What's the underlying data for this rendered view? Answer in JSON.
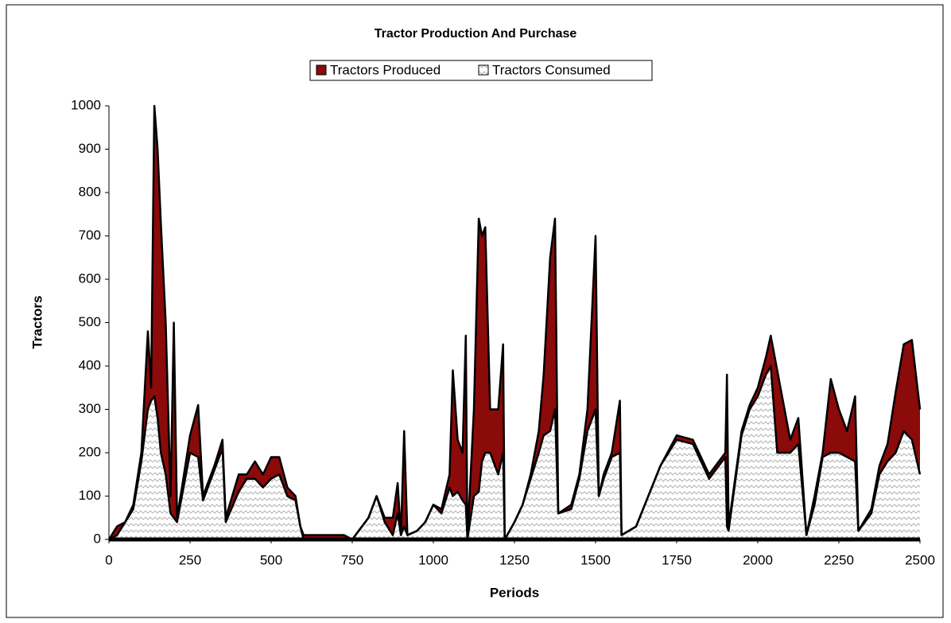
{
  "chart_data": {
    "type": "area",
    "title": "Tractor Production And Purchase",
    "x_label": "Periods",
    "y_label": "Tractors",
    "x": [
      0,
      25,
      50,
      75,
      100,
      120,
      130,
      140,
      150,
      160,
      175,
      190,
      200,
      210,
      225,
      250,
      275,
      290,
      325,
      350,
      360,
      400,
      425,
      450,
      475,
      500,
      525,
      550,
      575,
      590,
      600,
      650,
      700,
      725,
      750,
      800,
      825,
      850,
      875,
      890,
      900,
      910,
      920,
      950,
      975,
      1000,
      1025,
      1050,
      1060,
      1075,
      1090,
      1100,
      1105,
      1125,
      1140,
      1150,
      1160,
      1175,
      1200,
      1215,
      1220,
      1250,
      1275,
      1300,
      1325,
      1340,
      1360,
      1375,
      1385,
      1425,
      1450,
      1475,
      1500,
      1510,
      1525,
      1550,
      1575,
      1580,
      1625,
      1700,
      1750,
      1800,
      1850,
      1900,
      1905,
      1910,
      1950,
      1975,
      2000,
      2025,
      2040,
      2060,
      2100,
      2125,
      2150,
      2175,
      2200,
      2225,
      2250,
      2275,
      2300,
      2310,
      2350,
      2375,
      2400,
      2425,
      2450,
      2475,
      2500
    ],
    "series": [
      {
        "name": "Tractors Produced",
        "color": "#8b0a0a",
        "values": [
          0,
          30,
          40,
          80,
          200,
          480,
          350,
          1000,
          900,
          730,
          500,
          100,
          500,
          50,
          120,
          240,
          310,
          100,
          170,
          230,
          50,
          150,
          150,
          180,
          150,
          190,
          190,
          120,
          100,
          30,
          10,
          10,
          10,
          10,
          0,
          50,
          100,
          50,
          50,
          130,
          10,
          250,
          10,
          20,
          40,
          80,
          70,
          150,
          390,
          230,
          200,
          470,
          0,
          300,
          740,
          700,
          720,
          300,
          300,
          450,
          0,
          40,
          80,
          150,
          250,
          380,
          650,
          740,
          60,
          80,
          150,
          300,
          700,
          100,
          150,
          200,
          320,
          10,
          30,
          170,
          240,
          230,
          150,
          200,
          380,
          30,
          250,
          310,
          350,
          420,
          470,
          390,
          230,
          280,
          10,
          100,
          200,
          370,
          300,
          250,
          330,
          20,
          70,
          170,
          220,
          340,
          450,
          460,
          300
        ]
      },
      {
        "name": "Tractors Consumed",
        "color": "#b4b4b4",
        "values": [
          0,
          10,
          40,
          70,
          180,
          300,
          320,
          330,
          280,
          200,
          150,
          60,
          50,
          40,
          100,
          200,
          190,
          90,
          160,
          210,
          40,
          110,
          140,
          140,
          120,
          140,
          150,
          100,
          90,
          30,
          0,
          0,
          0,
          0,
          0,
          50,
          100,
          40,
          10,
          60,
          10,
          30,
          10,
          20,
          40,
          80,
          60,
          120,
          100,
          110,
          90,
          80,
          0,
          100,
          110,
          180,
          200,
          200,
          150,
          200,
          0,
          40,
          80,
          140,
          200,
          240,
          250,
          300,
          60,
          70,
          140,
          250,
          300,
          100,
          140,
          190,
          200,
          10,
          30,
          170,
          230,
          220,
          140,
          190,
          30,
          20,
          240,
          300,
          330,
          380,
          400,
          200,
          200,
          220,
          10,
          80,
          190,
          200,
          200,
          190,
          180,
          20,
          60,
          150,
          180,
          200,
          250,
          230,
          150
        ]
      }
    ],
    "xlim": [
      0,
      2500
    ],
    "xticks": [
      0,
      250,
      500,
      750,
      1000,
      1250,
      1500,
      1750,
      2000,
      2250,
      2500
    ],
    "ylim": [
      0,
      1000
    ],
    "yticks": [
      0,
      100,
      200,
      300,
      400,
      500,
      600,
      700,
      800,
      900,
      1000
    ],
    "grid": false,
    "legend": "top"
  }
}
